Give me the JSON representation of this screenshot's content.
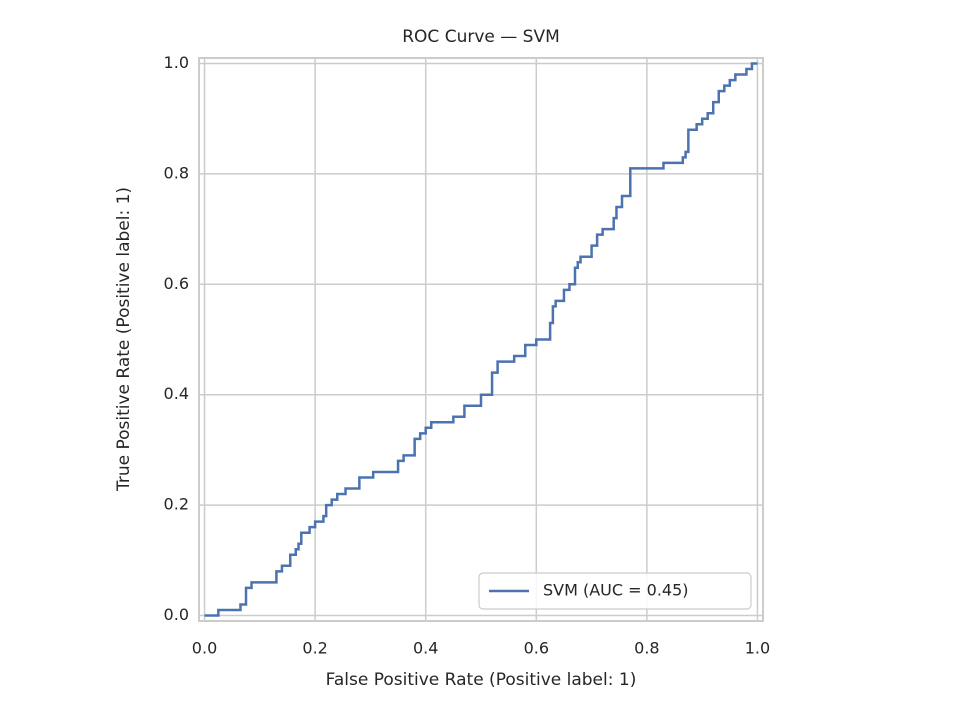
{
  "chart_data": {
    "type": "line",
    "title": "ROC Curve — SVM",
    "xlabel": "False Positive Rate (Positive label: 1)",
    "ylabel": "True Positive Rate (Positive label: 1)",
    "x": [
      0,
      0.025,
      0.025,
      0.065,
      0.065,
      0.075,
      0.075,
      0.085,
      0.085,
      0.13,
      0.13,
      0.14,
      0.14,
      0.155,
      0.155,
      0.165,
      0.165,
      0.17,
      0.17,
      0.175,
      0.175,
      0.19,
      0.19,
      0.2,
      0.2,
      0.215,
      0.215,
      0.22,
      0.22,
      0.23,
      0.23,
      0.24,
      0.24,
      0.255,
      0.255,
      0.28,
      0.28,
      0.305,
      0.305,
      0.35,
      0.35,
      0.36,
      0.36,
      0.38,
      0.38,
      0.39,
      0.39,
      0.4,
      0.4,
      0.41,
      0.41,
      0.45,
      0.45,
      0.47,
      0.47,
      0.5,
      0.5,
      0.52,
      0.52,
      0.53,
      0.53,
      0.56,
      0.56,
      0.58,
      0.58,
      0.6,
      0.6,
      0.625,
      0.625,
      0.63,
      0.63,
      0.635,
      0.635,
      0.65,
      0.65,
      0.66,
      0.66,
      0.67,
      0.67,
      0.675,
      0.675,
      0.68,
      0.68,
      0.7,
      0.7,
      0.71,
      0.71,
      0.72,
      0.72,
      0.74,
      0.74,
      0.745,
      0.745,
      0.755,
      0.755,
      0.77,
      0.77,
      0.83,
      0.83,
      0.865,
      0.865,
      0.87,
      0.87,
      0.875,
      0.875,
      0.89,
      0.89,
      0.9,
      0.9,
      0.91,
      0.91,
      0.92,
      0.92,
      0.93,
      0.93,
      0.94,
      0.94,
      0.95,
      0.95,
      0.96,
      0.96,
      0.98,
      0.98,
      0.99,
      0.99,
      1
    ],
    "series": [
      {
        "name": "SVM (AUC = 0.45)",
        "color": "#4c72b0",
        "values": [
          0,
          0,
          0.01,
          0.01,
          0.02,
          0.02,
          0.05,
          0.05,
          0.06,
          0.06,
          0.08,
          0.08,
          0.09,
          0.09,
          0.11,
          0.11,
          0.12,
          0.12,
          0.13,
          0.13,
          0.15,
          0.15,
          0.16,
          0.16,
          0.17,
          0.17,
          0.18,
          0.18,
          0.2,
          0.2,
          0.21,
          0.21,
          0.22,
          0.22,
          0.23,
          0.23,
          0.25,
          0.25,
          0.26,
          0.26,
          0.28,
          0.28,
          0.29,
          0.29,
          0.32,
          0.32,
          0.33,
          0.33,
          0.34,
          0.34,
          0.35,
          0.35,
          0.36,
          0.36,
          0.38,
          0.38,
          0.4,
          0.4,
          0.44,
          0.44,
          0.46,
          0.46,
          0.47,
          0.47,
          0.49,
          0.49,
          0.5,
          0.5,
          0.53,
          0.53,
          0.56,
          0.56,
          0.57,
          0.57,
          0.59,
          0.59,
          0.6,
          0.6,
          0.63,
          0.63,
          0.64,
          0.64,
          0.65,
          0.65,
          0.67,
          0.67,
          0.69,
          0.69,
          0.7,
          0.7,
          0.72,
          0.72,
          0.74,
          0.74,
          0.76,
          0.76,
          0.81,
          0.81,
          0.82,
          0.82,
          0.83,
          0.83,
          0.84,
          0.84,
          0.88,
          0.88,
          0.89,
          0.89,
          0.9,
          0.9,
          0.91,
          0.91,
          0.93,
          0.93,
          0.95,
          0.95,
          0.96,
          0.96,
          0.97,
          0.97,
          0.98,
          0.98,
          0.99,
          0.99,
          1,
          1
        ]
      }
    ],
    "xlim": [
      -0.01,
      1.01
    ],
    "ylim": [
      -0.01,
      1.01
    ],
    "xticks": [
      {
        "value": 0,
        "label": "0.0"
      },
      0.2,
      0.4,
      0.6,
      0.8,
      {
        "value": 1,
        "label": "1.0"
      }
    ],
    "yticks": [
      {
        "value": 0,
        "label": "0.0"
      },
      0.2,
      0.4,
      0.6,
      0.8,
      {
        "value": 1,
        "label": "1.0"
      }
    ],
    "grid": true,
    "legend": "lower right"
  }
}
